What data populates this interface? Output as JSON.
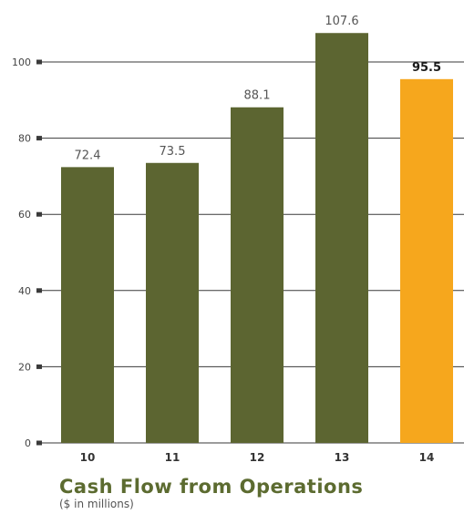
{
  "chart_data": {
    "type": "bar",
    "categories": [
      "10",
      "11",
      "12",
      "13",
      "14"
    ],
    "values": [
      72.4,
      73.5,
      88.1,
      107.6,
      95.5
    ],
    "value_labels": [
      "72.4",
      "73.5",
      "88.1",
      "107.6",
      "95.5"
    ],
    "highlight_index": 4,
    "title": "Cash Flow from Operations",
    "subtitle": "($ in millions)",
    "yticks": [
      0,
      20,
      40,
      60,
      80,
      100
    ],
    "ylim": [
      0,
      113
    ],
    "grid": true,
    "colors": {
      "bar": "#5c6531",
      "highlight": "#f6a71d",
      "grid": "#3a3a3a",
      "text": "#555555"
    }
  }
}
